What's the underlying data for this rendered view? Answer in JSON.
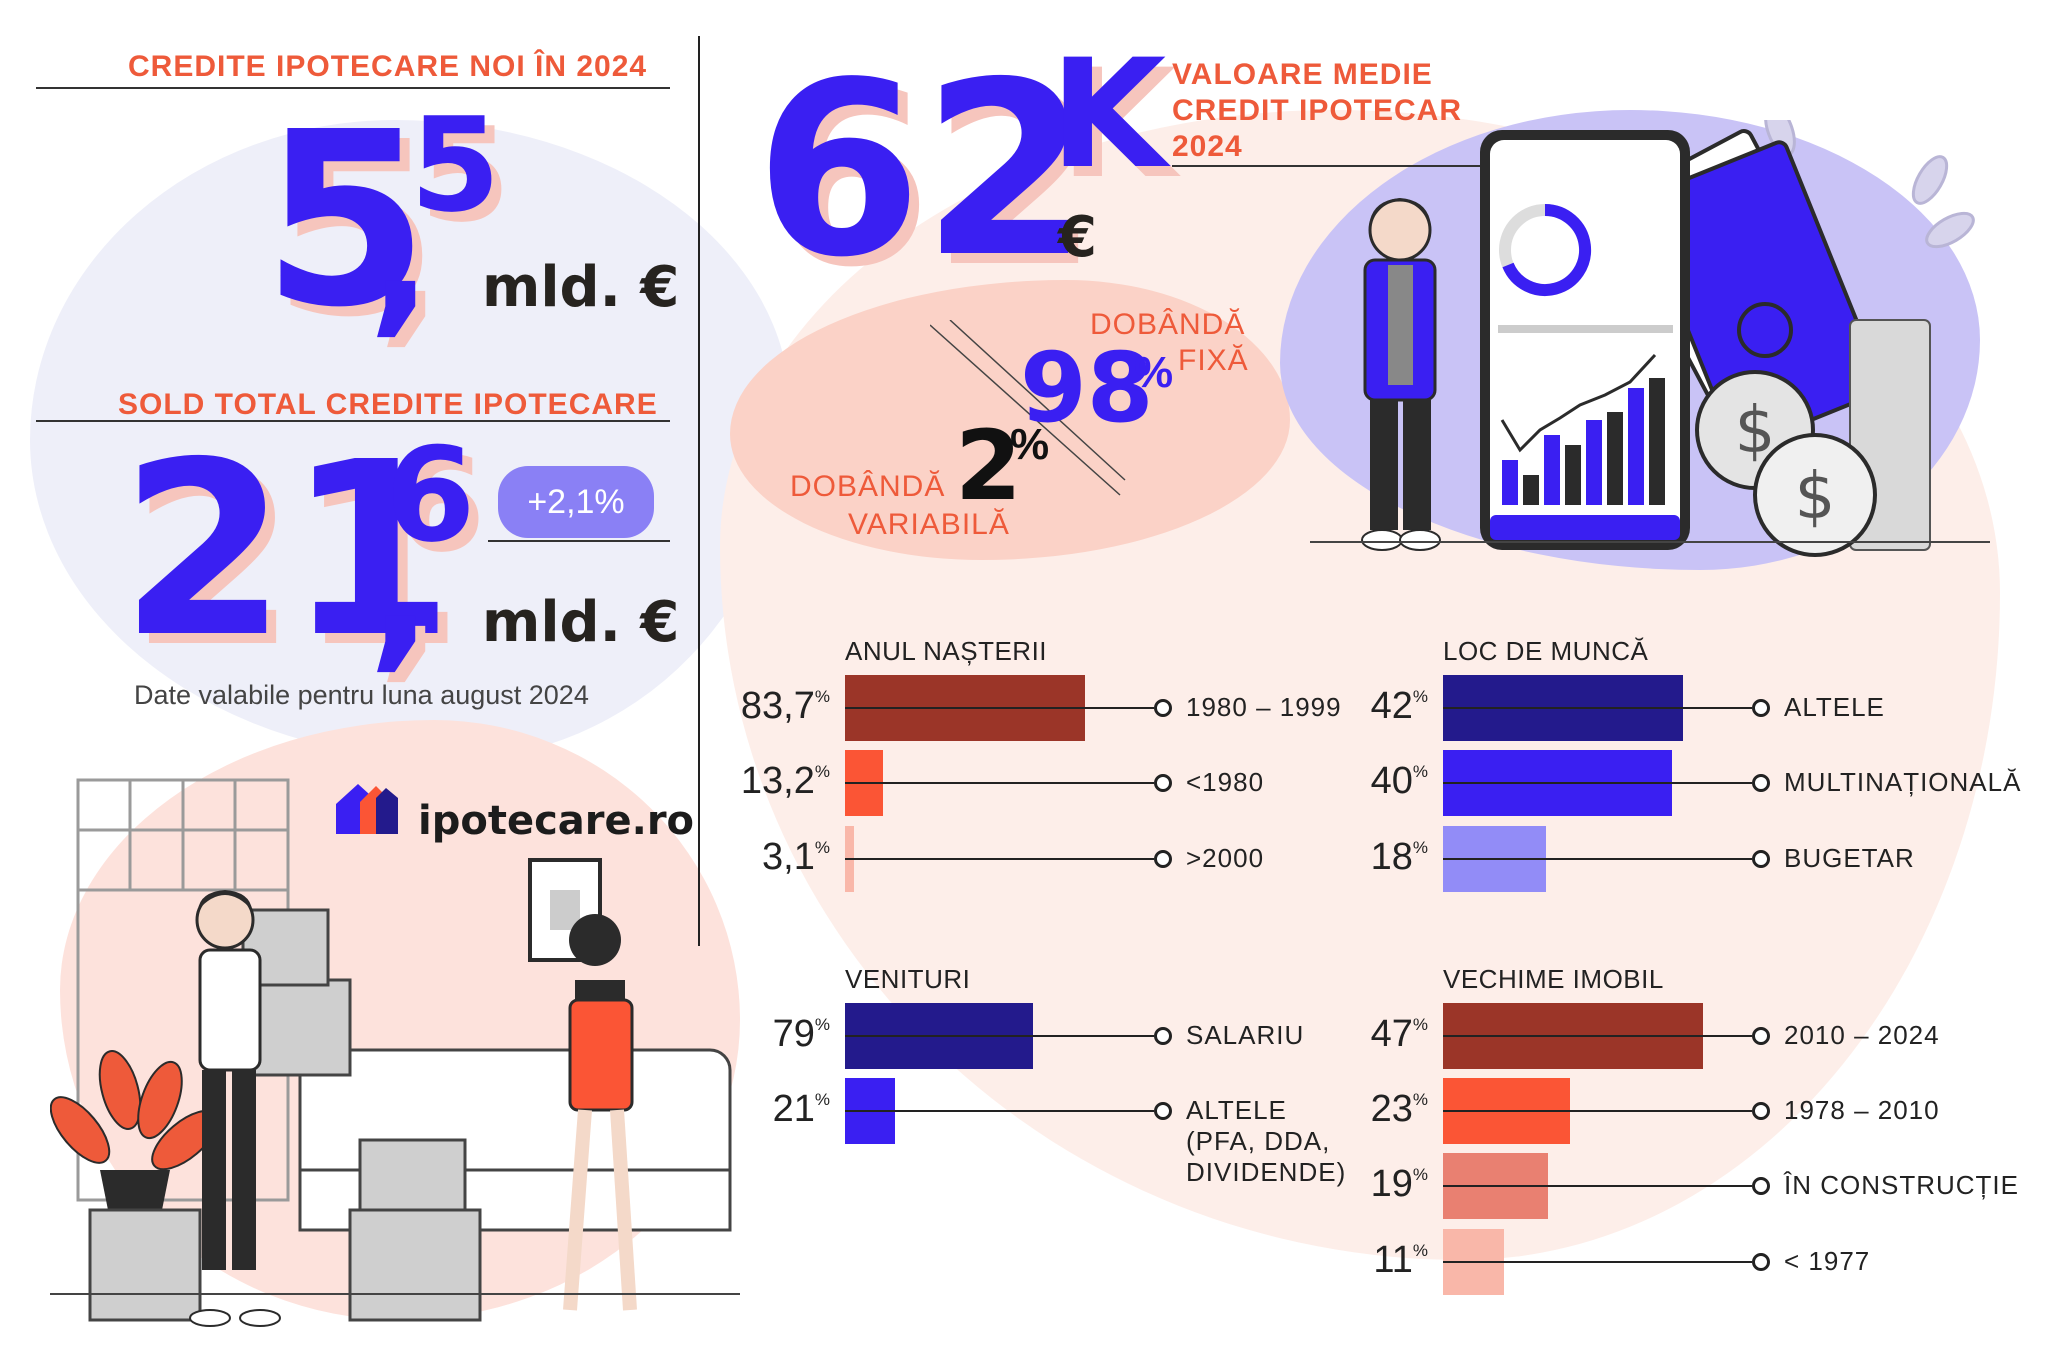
{
  "colors": {
    "accent_blue": "#3a1ff2",
    "accent_orange": "#ee5a3a",
    "lilac": "#8a80f5",
    "dark_navy": "#231a8c",
    "brick": "#9b3528",
    "coral": "#fb5535",
    "salmon": "#e98071",
    "light_salmon": "#f9b7a9",
    "light_lilac": "#928cf7"
  },
  "new_credits": {
    "heading": "CREDITE IPOTECARE NOI ÎN 2024",
    "value_int": "5",
    "value_sep": ",",
    "value_dec": "5",
    "unit": "mld. €"
  },
  "total_balance": {
    "heading": "SOLD TOTAL CREDITE IPOTECARE",
    "value_int": "21",
    "value_sep": ",",
    "value_dec": "6",
    "unit": "mld. €",
    "change_badge": "+2,1%",
    "note": "Date valabile pentru luna august 2024"
  },
  "average_value": {
    "value": "62",
    "suffix": "K",
    "currency": "€",
    "label_line1": "VALOARE MEDIE",
    "label_line2": "CREDIT IPOTECAR",
    "label_line3": "2024"
  },
  "interest": {
    "fixed_pct": "98",
    "fixed_label_1": "DOBÂNDĂ",
    "fixed_label_2": "FIXĂ",
    "variable_pct": "2",
    "variable_label_1": "DOBÂNDĂ",
    "variable_label_2": "VARIABILĂ",
    "pct_sign": "%"
  },
  "logo": {
    "text": "ipotecare.ro"
  },
  "chart_data": [
    {
      "type": "bar",
      "title": "ANUL NAȘTERII",
      "categories": [
        "1980 – 1999",
        "<1980",
        ">2000"
      ],
      "values": [
        83.7,
        13.2,
        3.1
      ],
      "value_labels": [
        "83,7",
        "13,2",
        "3,1"
      ],
      "unit": "%",
      "colors": [
        "#9b3528",
        "#fb5535",
        "#f9b7a9"
      ]
    },
    {
      "type": "bar",
      "title": "LOC DE MUNCĂ",
      "categories": [
        "ALTELE",
        "MULTINAȚIONALĂ",
        "BUGETAR"
      ],
      "values": [
        42,
        40,
        18
      ],
      "value_labels": [
        "42",
        "40",
        "18"
      ],
      "unit": "%",
      "colors": [
        "#231a8c",
        "#3a1ff2",
        "#928cf7"
      ]
    },
    {
      "type": "bar",
      "title": "VENITURI",
      "categories": [
        "SALARIU",
        "ALTELE (PFA, DDA, DIVIDENDE)"
      ],
      "category_lines": [
        [
          "SALARIU"
        ],
        [
          "ALTELE",
          "(PFA, DDA,",
          "DIVIDENDE)"
        ]
      ],
      "values": [
        79,
        21
      ],
      "value_labels": [
        "79",
        "21"
      ],
      "unit": "%",
      "colors": [
        "#231a8c",
        "#3a1ff2"
      ]
    },
    {
      "type": "bar",
      "title": "VECHIME IMOBIL",
      "categories": [
        "2010 – 2024",
        "1978 – 2010",
        "ÎN CONSTRUCȚIE",
        "< 1977"
      ],
      "values": [
        47,
        23,
        19,
        11
      ],
      "value_labels": [
        "47",
        "23",
        "19",
        "11"
      ],
      "unit": "%",
      "colors": [
        "#9b3528",
        "#fb5535",
        "#e98071",
        "#f9b7a9"
      ]
    }
  ]
}
